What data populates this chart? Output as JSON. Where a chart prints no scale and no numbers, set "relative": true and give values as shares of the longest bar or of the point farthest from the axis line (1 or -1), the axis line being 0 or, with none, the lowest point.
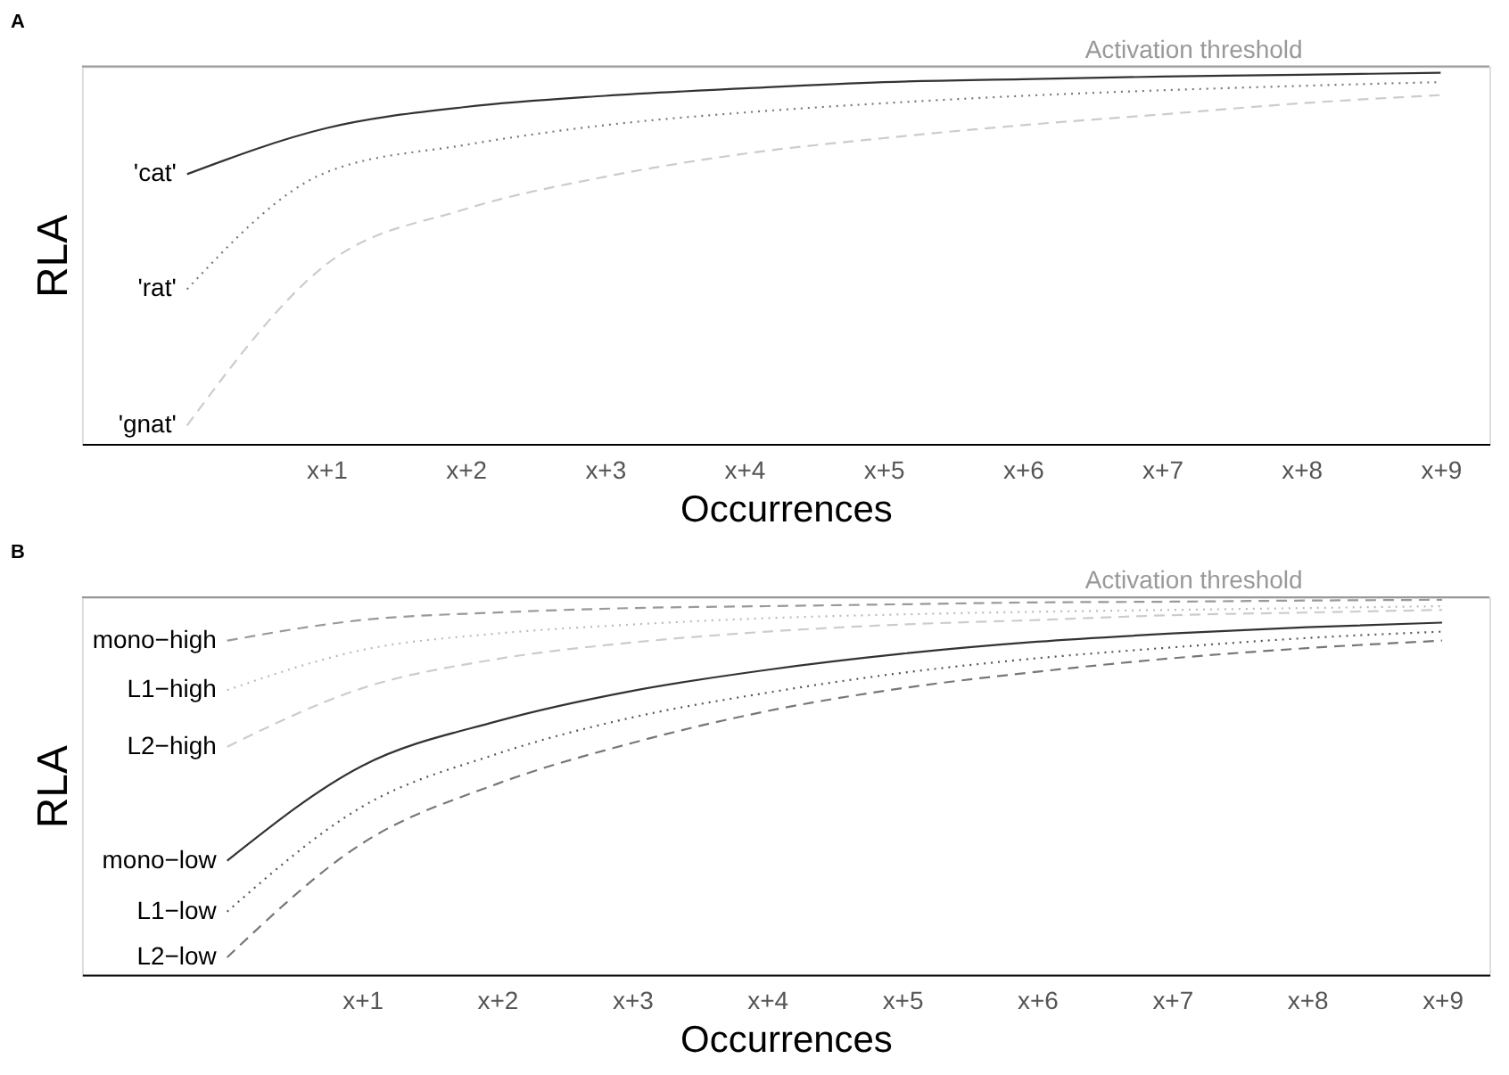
{
  "chart_data": [
    {
      "type": "line",
      "title": "A",
      "xlabel": "Occurrences",
      "ylabel": "RLA",
      "relative": true,
      "categories": [
        null,
        "x+1",
        "x+2",
        "x+3",
        "x+4",
        "x+5",
        "x+6",
        "x+7",
        "x+8",
        "x+9"
      ],
      "series": [
        {
          "name": "'cat'",
          "color": "#333333",
          "line_style": "solid",
          "values": [
            0.727,
            0.851,
            0.908,
            0.938,
            0.958,
            0.975,
            0.983,
            0.99,
            0.995,
            1.0
          ]
        },
        {
          "name": "'rat'",
          "color": "#777777",
          "line_style": "dotted",
          "values": [
            0.417,
            0.732,
            0.806,
            0.859,
            0.893,
            0.918,
            0.938,
            0.953,
            0.965,
            0.975
          ]
        },
        {
          "name": "'gnat'",
          "color": "#cccccc",
          "line_style": "dashed",
          "values": [
            0.05,
            0.484,
            0.633,
            0.72,
            0.782,
            0.824,
            0.859,
            0.888,
            0.918,
            0.94
          ]
        }
      ],
      "ref_lines": [
        {
          "axis": "y",
          "value": 1.017,
          "label": "Activation threshold",
          "color": "#999999"
        }
      ]
    },
    {
      "type": "line",
      "title": "B",
      "xlabel": "Occurrences",
      "ylabel": "RLA",
      "relative": true,
      "categories": [
        null,
        "x+1",
        "x+2",
        "x+3",
        "x+4",
        "x+5",
        "x+6",
        "x+7",
        "x+8",
        "x+9"
      ],
      "series": [
        {
          "name": "mono−high",
          "color": "#999999",
          "line_style": "dashed",
          "values": [
            0.891,
            0.946,
            0.966,
            0.978,
            0.983,
            0.988,
            0.993,
            0.995,
            0.998,
            1.0
          ]
        },
        {
          "name": "L1−high",
          "color": "#bbbbbb",
          "line_style": "dotted",
          "values": [
            0.759,
            0.866,
            0.91,
            0.934,
            0.951,
            0.961,
            0.968,
            0.973,
            0.978,
            0.983
          ]
        },
        {
          "name": "L2−high",
          "color": "#cccccc",
          "line_style": "dashed",
          "values": [
            0.608,
            0.764,
            0.842,
            0.886,
            0.915,
            0.934,
            0.946,
            0.959,
            0.966,
            0.973
          ]
        },
        {
          "name": "mono−low",
          "color": "#333333",
          "line_style": "solid",
          "values": [
            0.304,
            0.557,
            0.676,
            0.757,
            0.813,
            0.856,
            0.888,
            0.91,
            0.927,
            0.939
          ]
        },
        {
          "name": "L1−low",
          "color": "#555555",
          "line_style": "dotted",
          "values": [
            0.168,
            0.448,
            0.589,
            0.686,
            0.752,
            0.805,
            0.844,
            0.873,
            0.898,
            0.915
          ]
        },
        {
          "name": "L2−low",
          "color": "#777777",
          "line_style": "dashed",
          "values": [
            0.046,
            0.35,
            0.509,
            0.618,
            0.703,
            0.764,
            0.808,
            0.844,
            0.871,
            0.891
          ]
        }
      ],
      "ref_lines": [
        {
          "axis": "y",
          "value": 1.007,
          "label": "Activation threshold",
          "color": "#999999"
        }
      ]
    }
  ]
}
